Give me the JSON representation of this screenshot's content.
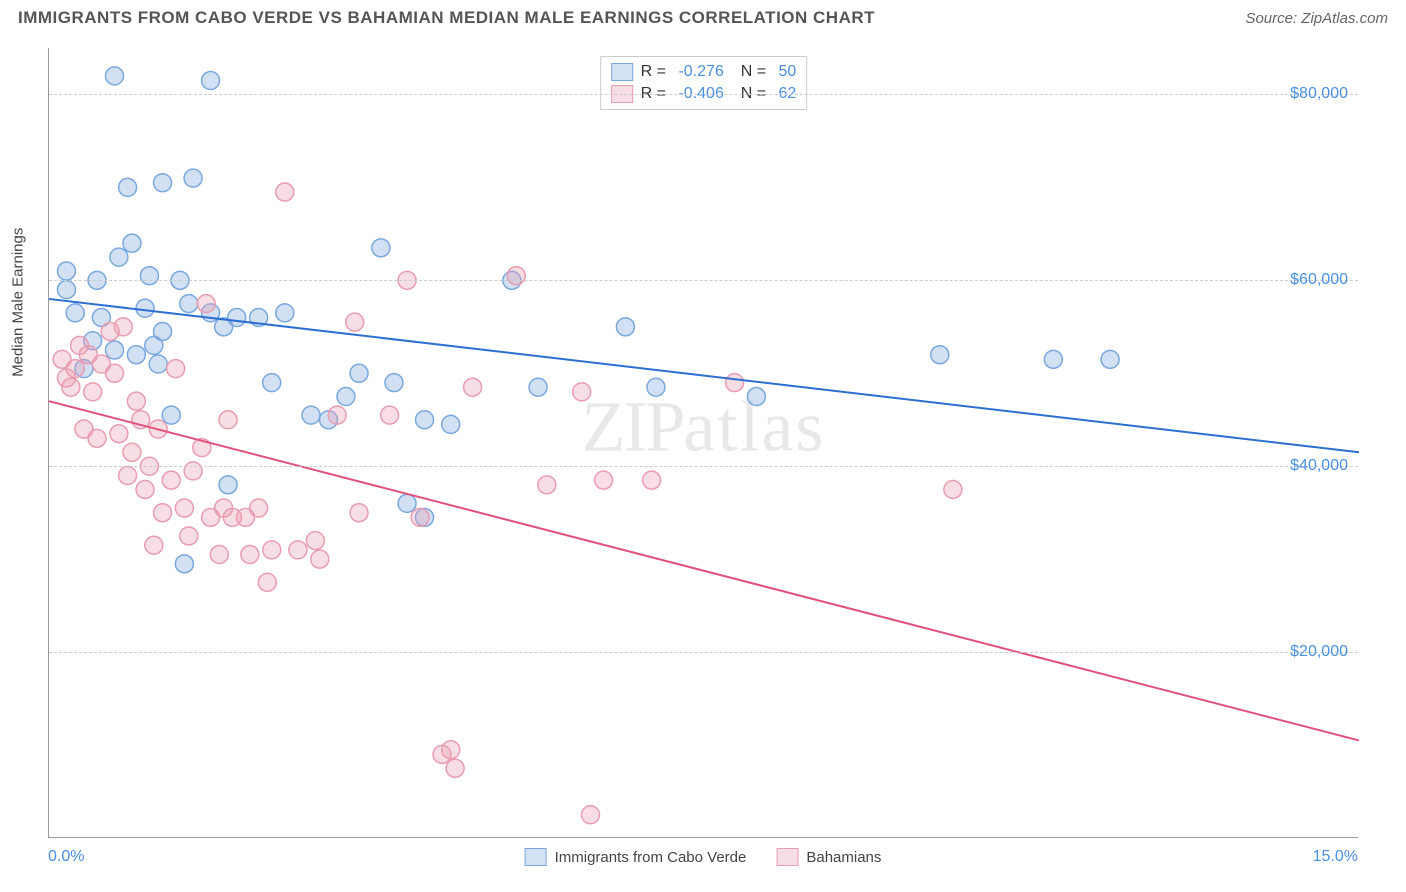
{
  "header": {
    "title": "IMMIGRANTS FROM CABO VERDE VS BAHAMIAN MEDIAN MALE EARNINGS CORRELATION CHART",
    "source": "Source: ZipAtlas.com"
  },
  "watermark": {
    "prefix": "ZIP",
    "suffix": "atlas"
  },
  "chart": {
    "type": "scatter",
    "background_color": "#ffffff",
    "grid_color": "#cccccc",
    "axis_color": "#999999",
    "y_axis_title": "Median Male Earnings",
    "xlim": [
      0,
      15
    ],
    "ylim": [
      0,
      85000
    ],
    "x_tick_labels": [
      "0.0%",
      "15.0%"
    ],
    "y_ticks": [
      20000,
      40000,
      60000,
      80000
    ],
    "y_tick_labels": [
      "$20,000",
      "$40,000",
      "$60,000",
      "$80,000"
    ],
    "tick_label_color": "#4a90e2",
    "tick_fontsize": 16,
    "axis_title_fontsize": 15,
    "marker_radius": 9,
    "marker_fill_opacity": 0.35,
    "marker_stroke_width": 1.5,
    "line_width": 2,
    "series": [
      {
        "name": "Immigrants from Cabo Verde",
        "color": "#7aa8de",
        "line_color": "#2e6fd1",
        "R": "-0.276",
        "N": "50",
        "trend": {
          "x1": 0,
          "y1": 58000,
          "x2": 15,
          "y2": 41500
        },
        "points": [
          [
            0.75,
            82000
          ],
          [
            1.85,
            81500
          ],
          [
            0.9,
            70000
          ],
          [
            1.3,
            70500
          ],
          [
            1.65,
            71000
          ],
          [
            0.2,
            59000
          ],
          [
            0.2,
            61000
          ],
          [
            0.5,
            53500
          ],
          [
            0.55,
            60000
          ],
          [
            0.8,
            62500
          ],
          [
            0.95,
            64000
          ],
          [
            1.1,
            57000
          ],
          [
            1.15,
            60500
          ],
          [
            1.2,
            53000
          ],
          [
            1.3,
            54500
          ],
          [
            1.5,
            60000
          ],
          [
            1.6,
            57500
          ],
          [
            1.85,
            56500
          ],
          [
            2.0,
            55000
          ],
          [
            2.15,
            56000
          ],
          [
            2.4,
            56000
          ],
          [
            2.55,
            49000
          ],
          [
            2.7,
            56500
          ],
          [
            3.0,
            45500
          ],
          [
            3.2,
            45000
          ],
          [
            3.4,
            47500
          ],
          [
            3.55,
            50000
          ],
          [
            3.8,
            63500
          ],
          [
            3.95,
            49000
          ],
          [
            4.1,
            36000
          ],
          [
            4.3,
            45000
          ],
          [
            4.3,
            34500
          ],
          [
            4.6,
            44500
          ],
          [
            5.3,
            60000
          ],
          [
            5.6,
            48500
          ],
          [
            6.6,
            55000
          ],
          [
            6.95,
            48500
          ],
          [
            8.1,
            47500
          ],
          [
            10.2,
            52000
          ],
          [
            11.5,
            51500
          ],
          [
            12.15,
            51500
          ],
          [
            1.55,
            29500
          ],
          [
            2.05,
            38000
          ],
          [
            0.4,
            50500
          ],
          [
            0.3,
            56500
          ],
          [
            0.6,
            56000
          ],
          [
            0.75,
            52500
          ],
          [
            1.0,
            52000
          ],
          [
            1.25,
            51000
          ],
          [
            1.4,
            45500
          ]
        ]
      },
      {
        "name": "Bahamians",
        "color": "#e89db1",
        "line_color": "#e0527a",
        "R": "-0.406",
        "N": "62",
        "trend": {
          "x1": 0,
          "y1": 47000,
          "x2": 15,
          "y2": 10500
        },
        "points": [
          [
            0.15,
            51500
          ],
          [
            0.2,
            49500
          ],
          [
            0.25,
            48500
          ],
          [
            0.3,
            50500
          ],
          [
            0.35,
            53000
          ],
          [
            0.45,
            52000
          ],
          [
            0.5,
            48000
          ],
          [
            0.6,
            51000
          ],
          [
            0.7,
            54500
          ],
          [
            0.75,
            50000
          ],
          [
            0.85,
            55000
          ],
          [
            0.95,
            41500
          ],
          [
            1.0,
            47000
          ],
          [
            1.05,
            45000
          ],
          [
            1.1,
            37500
          ],
          [
            1.15,
            40000
          ],
          [
            1.25,
            44000
          ],
          [
            1.3,
            35000
          ],
          [
            1.4,
            38500
          ],
          [
            1.45,
            50500
          ],
          [
            1.55,
            35500
          ],
          [
            1.6,
            32500
          ],
          [
            1.65,
            39500
          ],
          [
            1.75,
            42000
          ],
          [
            1.8,
            57500
          ],
          [
            1.85,
            34500
          ],
          [
            1.95,
            30500
          ],
          [
            2.0,
            35500
          ],
          [
            2.05,
            45000
          ],
          [
            2.1,
            34500
          ],
          [
            2.25,
            34500
          ],
          [
            2.3,
            30500
          ],
          [
            2.4,
            35500
          ],
          [
            2.5,
            27500
          ],
          [
            2.55,
            31000
          ],
          [
            2.7,
            69500
          ],
          [
            2.85,
            31000
          ],
          [
            3.05,
            32000
          ],
          [
            3.1,
            30000
          ],
          [
            3.3,
            45500
          ],
          [
            3.5,
            55500
          ],
          [
            3.55,
            35000
          ],
          [
            3.9,
            45500
          ],
          [
            4.1,
            60000
          ],
          [
            4.25,
            34500
          ],
          [
            4.5,
            9000
          ],
          [
            4.6,
            9500
          ],
          [
            4.65,
            7500
          ],
          [
            4.85,
            48500
          ],
          [
            5.35,
            60500
          ],
          [
            5.7,
            38000
          ],
          [
            6.1,
            48000
          ],
          [
            6.2,
            2500
          ],
          [
            6.35,
            38500
          ],
          [
            6.9,
            38500
          ],
          [
            7.85,
            49000
          ],
          [
            10.35,
            37500
          ],
          [
            0.4,
            44000
          ],
          [
            0.55,
            43000
          ],
          [
            0.8,
            43500
          ],
          [
            0.9,
            39000
          ],
          [
            1.2,
            31500
          ]
        ]
      }
    ]
  },
  "legend_bottom": {
    "items": [
      {
        "label": "Immigrants from Cabo Verde",
        "series_index": 0
      },
      {
        "label": "Bahamians",
        "series_index": 1
      }
    ]
  }
}
